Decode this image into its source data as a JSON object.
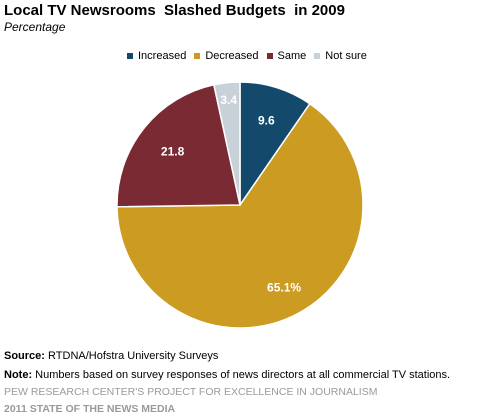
{
  "chart_data": {
    "type": "pie",
    "title": "Local TV Newsrooms  Slashed Budgets  in 2009",
    "subtitle": "Percentage",
    "slices": [
      {
        "label": "Increased",
        "value": 9.6,
        "display": "9.6",
        "color": "#134a6b"
      },
      {
        "label": "Decreased",
        "value": 65.1,
        "display": "65.1%",
        "color": "#cc9b22"
      },
      {
        "label": "Same",
        "value": 21.8,
        "display": "21.8",
        "color": "#7a2a33"
      },
      {
        "label": "Not sure",
        "value": 3.4,
        "display": "3.4",
        "color": "#c9d1d8"
      }
    ],
    "legend_position": "top"
  },
  "footer": {
    "source_label": "Source:",
    "source_text": "RTDNA/Hofstra University Surveys",
    "note_label": "Note:",
    "note_text": "Numbers based on survey responses of news directors at all commercial TV stations.",
    "org": "PEW RESEARCH CENTER'S PROJECT FOR EXCELLENCE IN JOURNALISM",
    "report": "2011 STATE OF THE NEWS MEDIA"
  }
}
